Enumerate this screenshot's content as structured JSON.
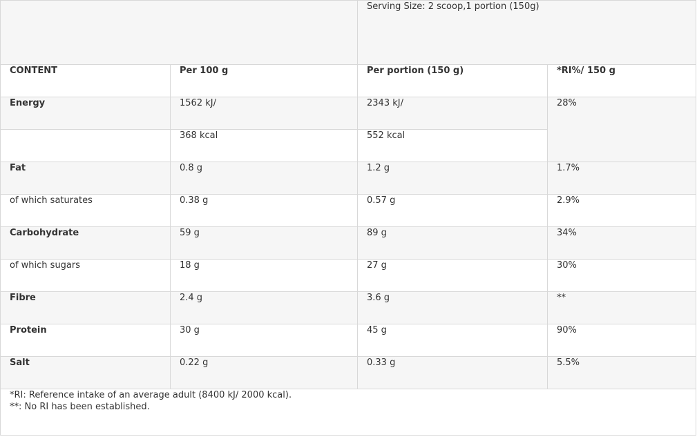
{
  "serving_size": "Serving Size: 2 scoop,1 portion (150g)",
  "headers": {
    "content": "CONTENT",
    "per100": "Per 100 g",
    "perportion": "Per portion (150 g)",
    "ri": "*RI%/ 150 g"
  },
  "rows": [
    {
      "name": "Energy",
      "per100": "1562 kJ/",
      "perportion": "2343 kJ/",
      "ri": "28%"
    },
    {
      "name": "",
      "per100": "368 kcal",
      "perportion": "552 kcal"
    },
    {
      "name": "Fat",
      "per100": "0.8 g",
      "perportion": "1.2 g",
      "ri": "1.7%"
    },
    {
      "name": "of which saturates",
      "per100": "0.38 g",
      "perportion": "0.57 g",
      "ri": "2.9%"
    },
    {
      "name": "Carbohydrate",
      "per100": "59 g",
      "perportion": "89 g",
      "ri": "34%"
    },
    {
      "name": "of which sugars",
      "per100": "18 g",
      "perportion": "27 g",
      "ri": "30%"
    },
    {
      "name": "Fibre",
      "per100": "2.4 g",
      "perportion": "3.6 g",
      "ri": "**"
    },
    {
      "name": "Protein",
      "per100": "30 g",
      "perportion": "45 g",
      "ri": "90%"
    },
    {
      "name": "Salt",
      "per100": "0.22 g",
      "perportion": "0.33 g",
      "ri": "5.5%"
    }
  ],
  "notes": [
    "*RI: Reference intake of an average adult (8400 kJ/ 2000 kcal).",
    "**: No RI has been established."
  ]
}
